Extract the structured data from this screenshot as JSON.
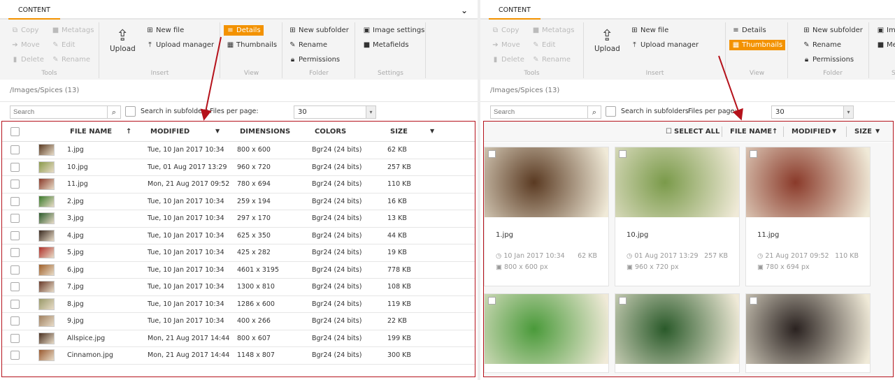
{
  "tab": "CONTENT",
  "ribbon": {
    "tools": {
      "label": "Tools",
      "copy": "Copy",
      "metatags": "Metatags",
      "move": "Move",
      "edit": "Edit",
      "delete": "Delete",
      "rename": "Rename"
    },
    "insert": {
      "label": "Insert",
      "upload": "Upload",
      "new_file": "New file",
      "upload_manager": "Upload manager"
    },
    "view": {
      "label": "View",
      "details": "Details",
      "thumbnails": "Thumbnails"
    },
    "folder": {
      "label": "Folder",
      "new_subfolder": "New subfolder",
      "rename": "Rename",
      "permissions": "Permissions"
    },
    "settings": {
      "label": "Settings",
      "image_settings": "Image settings",
      "metafields": "Metafields"
    }
  },
  "path": "/Images/Spices (13)",
  "search": {
    "placeholder": "Search",
    "subfolders": "Search in subfolders",
    "files_per_page_label": "Files per page:",
    "files_per_page": "30"
  },
  "accent": "#f39200",
  "highlight": "#b5121b",
  "details": {
    "columns": {
      "name": "FILE NAME",
      "modified": "MODIFIED",
      "dimensions": "DIMENSIONS",
      "colors": "COLORS",
      "size": "SIZE"
    },
    "rows": [
      {
        "name": "1.jpg",
        "modified": "Tue, 10 Jan 2017 10:34",
        "dim": "800 x 600",
        "colors": "Bgr24 (24 bits)",
        "size": "62 KB",
        "c": "#5a3a22"
      },
      {
        "name": "10.jpg",
        "modified": "Tue, 01 Aug 2017 13:29",
        "dim": "960 x 720",
        "colors": "Bgr24 (24 bits)",
        "size": "257 KB",
        "c": "#8a9a4a"
      },
      {
        "name": "11.jpg",
        "modified": "Mon, 21 Aug 2017 09:52",
        "dim": "780 x 694",
        "colors": "Bgr24 (24 bits)",
        "size": "110 KB",
        "c": "#8a3a2a"
      },
      {
        "name": "2.jpg",
        "modified": "Tue, 10 Jan 2017 10:34",
        "dim": "259 x 194",
        "colors": "Bgr24 (24 bits)",
        "size": "16 KB",
        "c": "#3a7a2a"
      },
      {
        "name": "3.jpg",
        "modified": "Tue, 10 Jan 2017 10:34",
        "dim": "297 x 170",
        "colors": "Bgr24 (24 bits)",
        "size": "13 KB",
        "c": "#2a5a2a"
      },
      {
        "name": "4.jpg",
        "modified": "Tue, 10 Jan 2017 10:34",
        "dim": "625 x 350",
        "colors": "Bgr24 (24 bits)",
        "size": "44 KB",
        "c": "#3a2a20"
      },
      {
        "name": "5.jpg",
        "modified": "Tue, 10 Jan 2017 10:34",
        "dim": "425 x 282",
        "colors": "Bgr24 (24 bits)",
        "size": "19 KB",
        "c": "#b0302a"
      },
      {
        "name": "6.jpg",
        "modified": "Tue, 10 Jan 2017 10:34",
        "dim": "4601 x 3195",
        "colors": "Bgr24 (24 bits)",
        "size": "778 KB",
        "c": "#a0602a"
      },
      {
        "name": "7.jpg",
        "modified": "Tue, 10 Jan 2017 10:34",
        "dim": "1300 x 810",
        "colors": "Bgr24 (24 bits)",
        "size": "108 KB",
        "c": "#6a3a2a"
      },
      {
        "name": "8.jpg",
        "modified": "Tue, 10 Jan 2017 10:34",
        "dim": "1286 x 600",
        "colors": "Bgr24 (24 bits)",
        "size": "119 KB",
        "c": "#9a9a6a"
      },
      {
        "name": "9.jpg",
        "modified": "Tue, 10 Jan 2017 10:34",
        "dim": "400 x 266",
        "colors": "Bgr24 (24 bits)",
        "size": "22 KB",
        "c": "#a08060"
      },
      {
        "name": "Allspice.jpg",
        "modified": "Mon, 21 Aug 2017 14:44",
        "dim": "800 x 607",
        "colors": "Bgr24 (24 bits)",
        "size": "199 KB",
        "c": "#4a3020"
      },
      {
        "name": "Cinnamon.jpg",
        "modified": "Mon, 21 Aug 2017 14:44",
        "dim": "1148 x 807",
        "colors": "Bgr24 (24 bits)",
        "size": "300 KB",
        "c": "#9a5a30"
      }
    ]
  },
  "thumbs": {
    "header": {
      "select_all": "SELECT ALL",
      "name": "FILE NAME",
      "modified": "MODIFIED",
      "size": "SIZE"
    },
    "cards": [
      {
        "name": "1.jpg",
        "date": "10 Jan 2017 10:34",
        "size": "62 KB",
        "dim": "800 x 600 px",
        "c": "#5a3a22"
      },
      {
        "name": "10.jpg",
        "date": "01 Aug 2017 13:29",
        "size": "257 KB",
        "dim": "960 x 720 px",
        "c": "#7a9a4a"
      },
      {
        "name": "11.jpg",
        "date": "21 Aug 2017 09:52",
        "size": "110 KB",
        "dim": "780 x 694 px",
        "c": "#8a3a2a"
      },
      {
        "c": "#4a9a3a"
      },
      {
        "c": "#2a5a2a"
      },
      {
        "c": "#2a2220"
      }
    ]
  }
}
